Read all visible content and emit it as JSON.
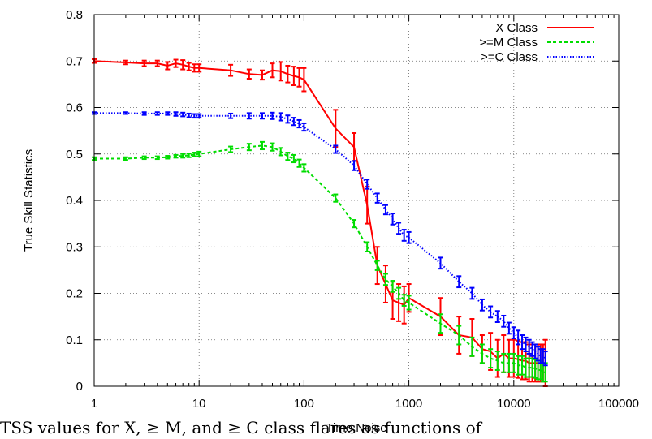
{
  "caption": "TSS values for X, ≥ M, and ≥ C class flares as functions of",
  "chart_data": {
    "type": "line",
    "xlabel": "Time Noise",
    "ylabel": "True Skill Statistics",
    "xscale": "log",
    "xlim": [
      1,
      100000
    ],
    "ylim": [
      0,
      0.8
    ],
    "xticks": [
      1,
      10,
      100,
      1000,
      10000,
      100000
    ],
    "xtick_labels": [
      "1",
      "10",
      "100",
      "1000",
      "10000",
      "100000"
    ],
    "yticks": [
      0,
      0.1,
      0.2,
      0.3,
      0.4,
      0.5,
      0.6,
      0.7,
      0.8
    ],
    "ytick_labels": [
      "0",
      "0.1",
      "0.2",
      "0.3",
      "0.4",
      "0.5",
      "0.6",
      "0.7",
      "0.8"
    ],
    "grid": true,
    "legend_position": "top-right",
    "series": [
      {
        "name": "X Class",
        "color": "#ff0000",
        "style": "solid",
        "x": [
          1,
          2,
          3,
          4,
          5,
          6,
          7,
          8,
          9,
          10,
          20,
          30,
          40,
          50,
          60,
          70,
          80,
          90,
          100,
          200,
          300,
          400,
          500,
          600,
          700,
          800,
          900,
          1000,
          2000,
          3000,
          4000,
          5000,
          6000,
          7000,
          8000,
          9000,
          10000,
          11000,
          12000,
          13000,
          14000,
          15000,
          16000,
          17000,
          18000,
          19000,
          20000
        ],
        "y": [
          0.7,
          0.697,
          0.695,
          0.695,
          0.69,
          0.695,
          0.692,
          0.688,
          0.685,
          0.685,
          0.68,
          0.672,
          0.67,
          0.68,
          0.678,
          0.672,
          0.668,
          0.665,
          0.66,
          0.555,
          0.515,
          0.39,
          0.26,
          0.22,
          0.185,
          0.18,
          0.175,
          0.19,
          0.15,
          0.11,
          0.105,
          0.08,
          0.075,
          0.06,
          0.07,
          0.06,
          0.06,
          0.058,
          0.055,
          0.055,
          0.05,
          0.05,
          0.05,
          0.05,
          0.05,
          0.05,
          0.05
        ],
        "err": [
          0.004,
          0.004,
          0.006,
          0.006,
          0.008,
          0.008,
          0.01,
          0.008,
          0.008,
          0.008,
          0.012,
          0.01,
          0.01,
          0.015,
          0.02,
          0.018,
          0.02,
          0.02,
          0.025,
          0.04,
          0.03,
          0.04,
          0.04,
          0.04,
          0.04,
          0.04,
          0.04,
          0.03,
          0.04,
          0.04,
          0.04,
          0.03,
          0.04,
          0.04,
          0.04,
          0.04,
          0.04,
          0.04,
          0.04,
          0.04,
          0.04,
          0.04,
          0.04,
          0.04,
          0.04,
          0.04,
          0.05
        ]
      },
      {
        "name": ">=M Class",
        "color": "#00dd00",
        "style": "dashed",
        "x": [
          1,
          2,
          3,
          4,
          5,
          6,
          7,
          8,
          9,
          10,
          20,
          30,
          40,
          50,
          60,
          70,
          80,
          90,
          100,
          200,
          300,
          400,
          500,
          600,
          700,
          800,
          900,
          1000,
          2000,
          3000,
          4000,
          5000,
          6000,
          7000,
          8000,
          9000,
          10000,
          11000,
          12000,
          13000,
          14000,
          15000,
          16000,
          17000,
          18000,
          19000,
          20000
        ],
        "y": [
          0.49,
          0.49,
          0.492,
          0.492,
          0.493,
          0.495,
          0.496,
          0.497,
          0.499,
          0.5,
          0.51,
          0.515,
          0.518,
          0.515,
          0.505,
          0.495,
          0.49,
          0.48,
          0.47,
          0.405,
          0.35,
          0.3,
          0.26,
          0.23,
          0.215,
          0.2,
          0.185,
          0.18,
          0.135,
          0.11,
          0.085,
          0.07,
          0.06,
          0.055,
          0.05,
          0.05,
          0.05,
          0.045,
          0.045,
          0.04,
          0.04,
          0.04,
          0.038,
          0.035,
          0.035,
          0.03,
          0.03
        ],
        "err": [
          0.003,
          0.003,
          0.003,
          0.003,
          0.003,
          0.003,
          0.004,
          0.004,
          0.004,
          0.005,
          0.006,
          0.007,
          0.008,
          0.008,
          0.008,
          0.008,
          0.008,
          0.008,
          0.008,
          0.008,
          0.008,
          0.01,
          0.01,
          0.012,
          0.012,
          0.012,
          0.012,
          0.015,
          0.02,
          0.02,
          0.02,
          0.02,
          0.02,
          0.02,
          0.02,
          0.02,
          0.02,
          0.02,
          0.02,
          0.02,
          0.02,
          0.02,
          0.02,
          0.02,
          0.02,
          0.02,
          0.02
        ]
      },
      {
        "name": ">=C Class",
        "color": "#0000ff",
        "style": "dotted",
        "x": [
          1,
          2,
          3,
          4,
          5,
          6,
          7,
          8,
          9,
          10,
          20,
          30,
          40,
          50,
          60,
          70,
          80,
          90,
          100,
          200,
          300,
          400,
          500,
          600,
          700,
          800,
          900,
          1000,
          2000,
          3000,
          4000,
          5000,
          6000,
          7000,
          8000,
          9000,
          10000,
          11000,
          12000,
          13000,
          14000,
          15000,
          16000,
          17000,
          18000,
          19000,
          20000
        ],
        "y": [
          0.588,
          0.588,
          0.587,
          0.587,
          0.587,
          0.586,
          0.585,
          0.583,
          0.582,
          0.582,
          0.582,
          0.582,
          0.582,
          0.582,
          0.58,
          0.575,
          0.57,
          0.565,
          0.558,
          0.51,
          0.475,
          0.435,
          0.405,
          0.38,
          0.36,
          0.34,
          0.325,
          0.32,
          0.265,
          0.225,
          0.2,
          0.175,
          0.16,
          0.15,
          0.14,
          0.125,
          0.115,
          0.105,
          0.095,
          0.09,
          0.085,
          0.08,
          0.075,
          0.07,
          0.065,
          0.065,
          0.06
        ],
        "err": [
          0.002,
          0.002,
          0.003,
          0.003,
          0.003,
          0.004,
          0.004,
          0.004,
          0.004,
          0.004,
          0.005,
          0.006,
          0.006,
          0.007,
          0.008,
          0.008,
          0.008,
          0.008,
          0.008,
          0.008,
          0.01,
          0.01,
          0.01,
          0.01,
          0.012,
          0.012,
          0.012,
          0.012,
          0.012,
          0.012,
          0.012,
          0.012,
          0.012,
          0.012,
          0.012,
          0.012,
          0.012,
          0.015,
          0.015,
          0.015,
          0.015,
          0.015,
          0.015,
          0.015,
          0.015,
          0.015,
          0.015
        ]
      }
    ]
  }
}
